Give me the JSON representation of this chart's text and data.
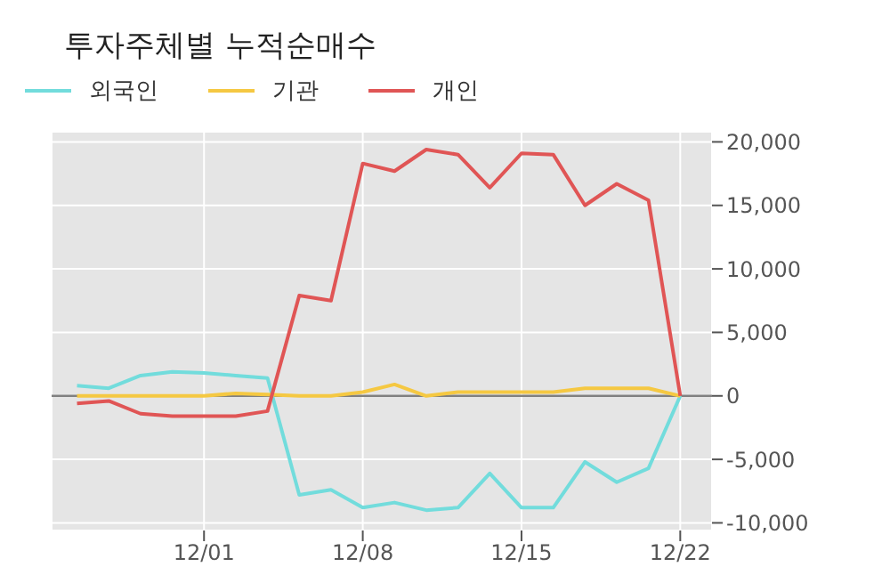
{
  "chart_data": {
    "type": "line",
    "title": "투자주체별 누적순매수",
    "categories": [
      null,
      null,
      null,
      null,
      "12/01",
      null,
      null,
      null,
      null,
      "12/08",
      null,
      null,
      null,
      null,
      "12/15",
      null,
      null,
      null,
      null,
      "12/22"
    ],
    "series": [
      {
        "name": "외국인",
        "color": "#72dcdc",
        "values": [
          800,
          600,
          1600,
          1900,
          1800,
          1600,
          1400,
          -7800,
          -7400,
          -8800,
          -8400,
          -9000,
          -8800,
          -6100,
          -8800,
          -8800,
          -5200,
          -6800,
          -5700,
          0
        ]
      },
      {
        "name": "기관",
        "color": "#f5c842",
        "values": [
          0,
          0,
          0,
          0,
          0,
          200,
          100,
          0,
          0,
          300,
          900,
          0,
          300,
          300,
          300,
          300,
          600,
          600,
          600,
          0
        ]
      },
      {
        "name": "개인",
        "color": "#e05555",
        "values": [
          -600,
          -400,
          -1400,
          -1600,
          -1600,
          -1600,
          -1200,
          7900,
          7500,
          18300,
          17700,
          19400,
          19000,
          16400,
          19100,
          19000,
          15000,
          16700,
          15400,
          0
        ]
      }
    ],
    "ylim": [
      -10600,
      20800
    ],
    "yticks": [
      {
        "value": -10000,
        "label": "-10,000"
      },
      {
        "value": -5000,
        "label": "-5,000"
      },
      0,
      {
        "value": 5000,
        "label": "5,000"
      },
      {
        "value": 10000,
        "label": "10,000"
      },
      {
        "value": 15000,
        "label": "15,000"
      },
      {
        "value": 20000,
        "label": "20,000"
      }
    ],
    "ref_lines": [
      {
        "axis": "y",
        "value": 0,
        "color": "#808080"
      }
    ],
    "grid": true,
    "legend": "top left",
    "marker": "none",
    "line_style": "solid"
  }
}
